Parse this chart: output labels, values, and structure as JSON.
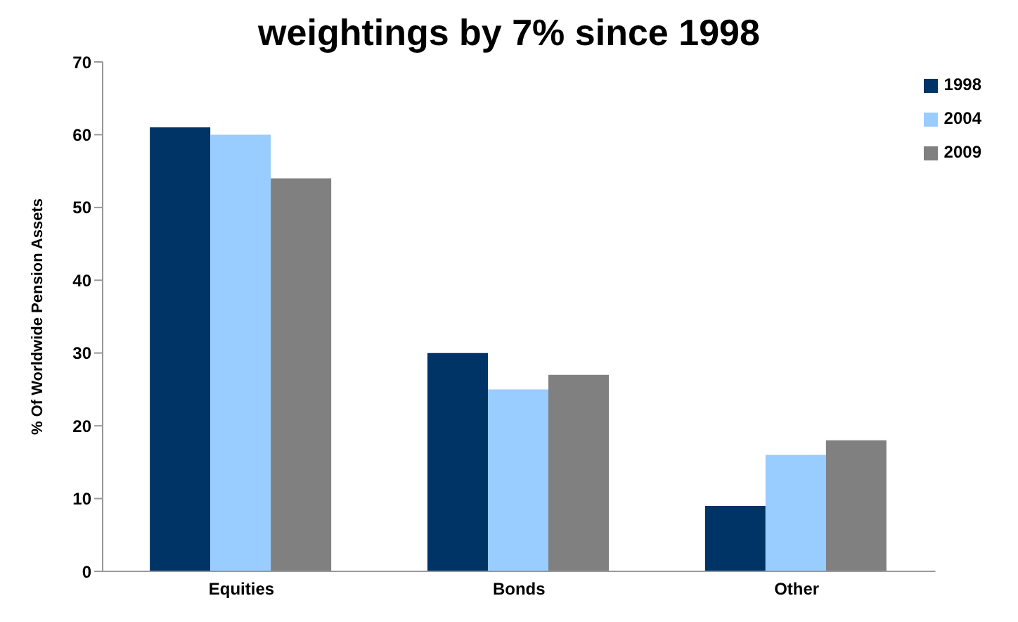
{
  "chart_data": {
    "type": "bar",
    "title": "weightings by 7% since 1998",
    "ylabel": "% Of Worldwide Pension Assets",
    "categories": [
      "Equities",
      "Bonds",
      "Other"
    ],
    "series": [
      {
        "name": "1998",
        "color": "#003366",
        "values": [
          61,
          30,
          9
        ]
      },
      {
        "name": "2004",
        "color": "#99ccff",
        "values": [
          60,
          25,
          16
        ]
      },
      {
        "name": "2009",
        "color": "#808080",
        "values": [
          54,
          27,
          18
        ]
      }
    ],
    "ylim": [
      0,
      70
    ],
    "yticks": [
      0,
      10,
      20,
      30,
      40,
      50,
      60,
      70
    ],
    "grid": false,
    "legend": "top right"
  }
}
